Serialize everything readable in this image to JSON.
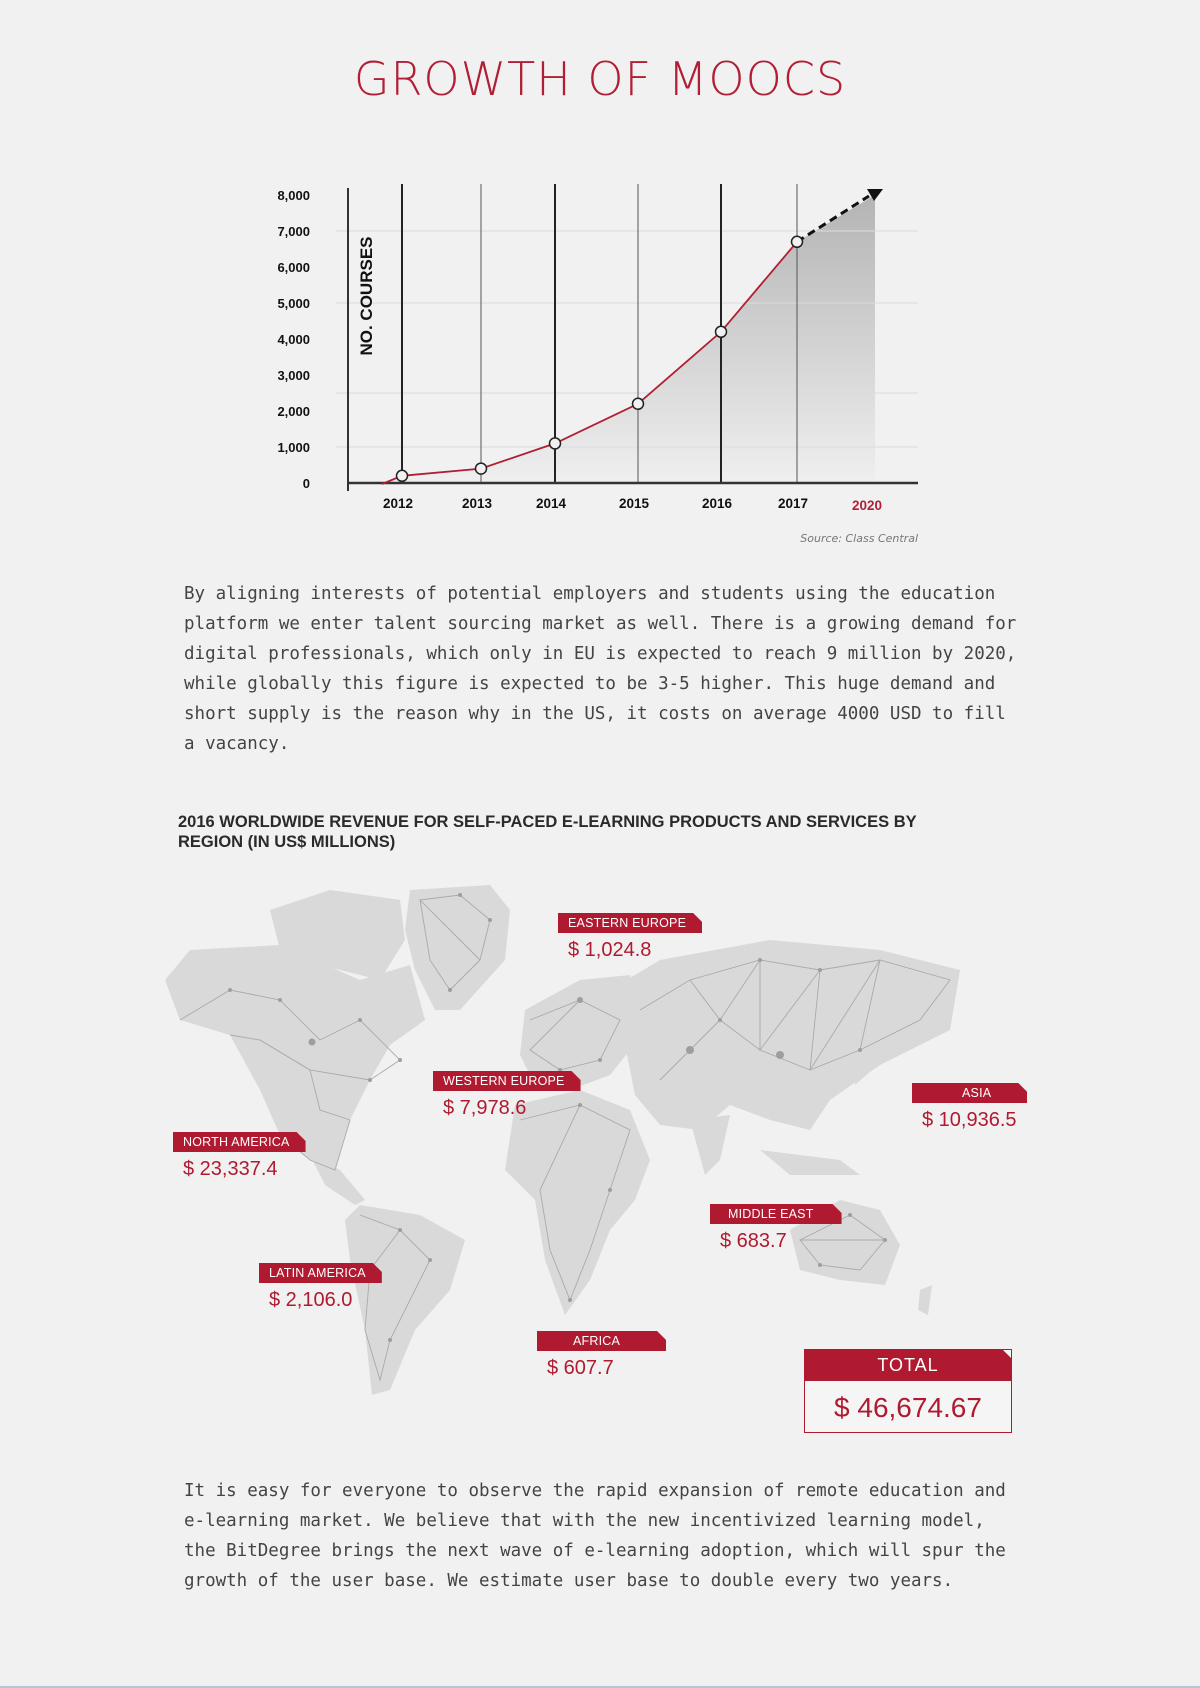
{
  "page_title": "GROWTH OF MOOCS",
  "chart_data": {
    "type": "line",
    "categories": [
      "2012",
      "2013",
      "2014",
      "2015",
      "2016",
      "2017"
    ],
    "projection_label": "2020",
    "values": [
      200,
      400,
      1100,
      2200,
      4200,
      6700
    ],
    "y_ticks": [
      "0",
      "1,000",
      "2,000",
      "3,000",
      "4,000",
      "5,000",
      "6,000",
      "7,000",
      "8,000"
    ],
    "ylabel": "NO. COURSES",
    "ylim": [
      0,
      8000
    ],
    "source": "Source: Class Central",
    "colors": {
      "line": "#b01f35",
      "accent": "#b01f35"
    }
  },
  "paragraph_1": "By aligning interests of potential employers and students using the education platform we enter talent sourcing market as well. There is a growing demand for digital professionals, which only in EU is expected to reach 9 million by 2020, while globally this figure is expected to be 3-5 higher. This huge demand and short supply is the reason why in the US, it costs on average 4000 USD to fill a vacancy.",
  "map_title": "2016 WORLDWIDE REVENUE FOR SELF-PACED E-LEARNING PRODUCTS AND SERVICES BY REGION (IN US$ MILLIONS)",
  "regions": {
    "eastern_europe": {
      "label": "EASTERN EUROPE",
      "value": "$ 1,024.8"
    },
    "western_europe": {
      "label": "WESTERN EUROPE",
      "value": "$ 7,978.6"
    },
    "asia": {
      "label": "ASIA",
      "value": "$ 10,936.5"
    },
    "north_america": {
      "label": "NORTH AMERICA",
      "value": "$ 23,337.4"
    },
    "middle_east": {
      "label": "MIDDLE EAST",
      "value": "$ 683.7"
    },
    "latin_america": {
      "label": "LATIN AMERICA",
      "value": "$ 2,106.0"
    },
    "africa": {
      "label": "AFRICA",
      "value": "$ 607.7"
    }
  },
  "total": {
    "label": "TOTAL",
    "value": "$ 46,674.67"
  },
  "paragraph_2": "It is easy for everyone to observe the rapid expansion of remote education and e-learning market. We believe that with the new incentivized learning model, the BitDegree brings the next wave of e-learning adoption, which will spur the growth of the user base. We estimate user base to double every two years."
}
